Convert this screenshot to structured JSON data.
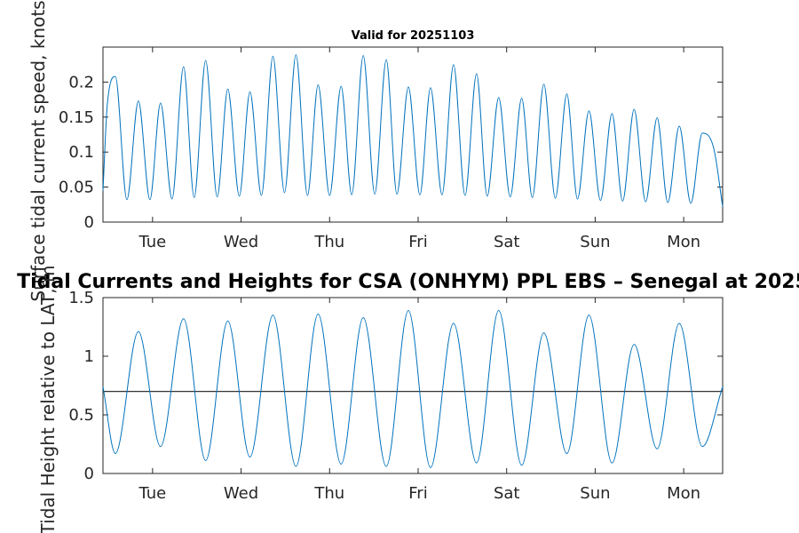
{
  "chart_data": [
    {
      "type": "line",
      "title": "Valid for 20251103",
      "xlabel": "",
      "ylabel": "Surface tidal current speed, knots",
      "ylim": [
        0,
        0.25
      ],
      "yticks": [
        0,
        0.05,
        0.1,
        0.15,
        0.2
      ],
      "ytick_labels": [
        "0",
        "0.05",
        "0.1",
        "0.15",
        "0.2"
      ],
      "xlim_days": [
        0,
        7.0
      ],
      "xticks_days": [
        0.56,
        1.56,
        2.56,
        3.56,
        4.56,
        5.56,
        6.56
      ],
      "xtick_labels": [
        "Tue",
        "Wed",
        "Thu",
        "Fri",
        "Sat",
        "Sun",
        "Mon"
      ],
      "series": [
        {
          "name": "current speed",
          "color": "#0072BD",
          "x": [
            0.0,
            0.05,
            0.14,
            0.27,
            0.4,
            0.53,
            0.65,
            0.78,
            0.91,
            1.03,
            1.16,
            1.29,
            1.41,
            1.54,
            1.66,
            1.79,
            1.92,
            2.05,
            2.18,
            2.31,
            2.43,
            2.56,
            2.69,
            2.81,
            2.94,
            3.07,
            3.2,
            3.32,
            3.45,
            3.58,
            3.7,
            3.83,
            3.96,
            4.09,
            4.22,
            4.34,
            4.47,
            4.6,
            4.73,
            4.85,
            4.98,
            5.11,
            5.24,
            5.36,
            5.49,
            5.62,
            5.75,
            5.87,
            6.0,
            6.13,
            6.26,
            6.38,
            6.51,
            6.64,
            6.77,
            6.9,
            7.0
          ],
          "y": [
            0.045,
            0.17,
            0.208,
            0.032,
            0.173,
            0.032,
            0.17,
            0.033,
            0.222,
            0.035,
            0.231,
            0.036,
            0.19,
            0.037,
            0.186,
            0.038,
            0.237,
            0.042,
            0.239,
            0.038,
            0.196,
            0.038,
            0.194,
            0.039,
            0.238,
            0.04,
            0.232,
            0.04,
            0.193,
            0.039,
            0.192,
            0.039,
            0.225,
            0.038,
            0.212,
            0.037,
            0.178,
            0.036,
            0.177,
            0.035,
            0.197,
            0.034,
            0.183,
            0.033,
            0.159,
            0.031,
            0.155,
            0.03,
            0.161,
            0.029,
            0.149,
            0.028,
            0.137,
            0.027,
            0.127,
            0.105,
            0.022
          ]
        }
      ]
    },
    {
      "type": "line",
      "title": "Tidal Currents and Heights for CSA (ONHYM) PPL EBS  – Senegal at 2025",
      "xlabel": "",
      "ylabel": "Tidal Height relative to LAT, m",
      "ylim": [
        0,
        1.5
      ],
      "yticks": [
        0,
        0.5,
        1,
        1.5
      ],
      "ytick_labels": [
        "0",
        "0.5",
        "1",
        "1.5"
      ],
      "xlim_days": [
        0,
        7.0
      ],
      "xticks_days": [
        0.56,
        1.56,
        2.56,
        3.56,
        4.56,
        5.56,
        6.56
      ],
      "xtick_labels": [
        "Tue",
        "Wed",
        "Thu",
        "Fri",
        "Sat",
        "Sun",
        "Mon"
      ],
      "reference_line": 0.7,
      "series": [
        {
          "name": "tidal height",
          "color": "#0072BD",
          "x": [
            0.0,
            0.14,
            0.4,
            0.65,
            0.91,
            1.16,
            1.41,
            1.66,
            1.92,
            2.18,
            2.43,
            2.69,
            2.94,
            3.2,
            3.45,
            3.7,
            3.96,
            4.22,
            4.47,
            4.73,
            4.98,
            5.24,
            5.49,
            5.75,
            6.0,
            6.26,
            6.51,
            6.77,
            7.0
          ],
          "y": [
            0.74,
            0.17,
            1.21,
            0.23,
            1.32,
            0.11,
            1.3,
            0.14,
            1.35,
            0.06,
            1.36,
            0.08,
            1.33,
            0.06,
            1.39,
            0.05,
            1.28,
            0.09,
            1.39,
            0.07,
            1.2,
            0.17,
            1.35,
            0.09,
            1.1,
            0.21,
            1.28,
            0.23,
            0.74
          ]
        }
      ]
    }
  ]
}
